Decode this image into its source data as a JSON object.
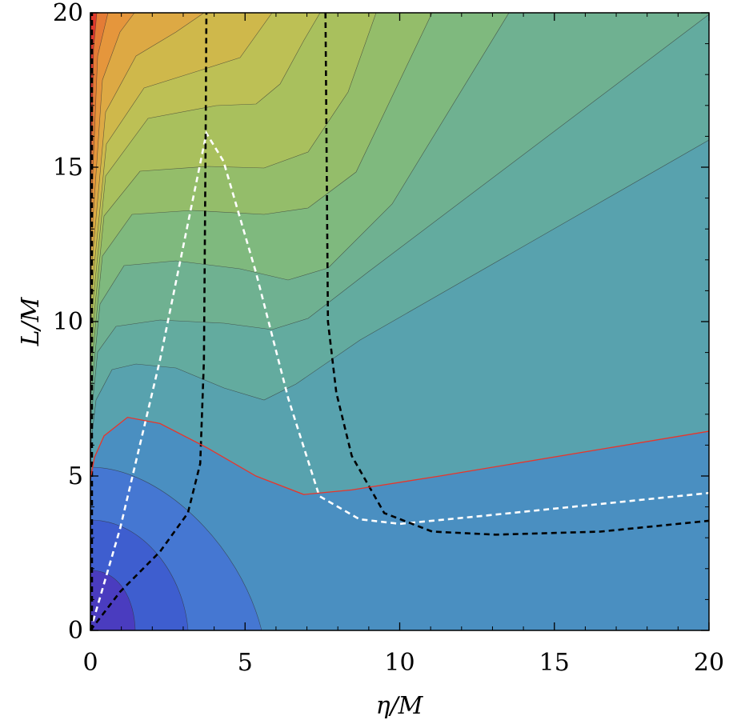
{
  "chart_data": {
    "type": "contour",
    "xlabel": "η/M",
    "ylabel": "L/M",
    "xlim": [
      0,
      20
    ],
    "ylim": [
      0,
      20
    ],
    "xticks": [
      0,
      5,
      10,
      15,
      20
    ],
    "yticks": [
      0,
      5,
      10,
      15,
      20
    ],
    "xminorticks": [
      1,
      2,
      3,
      4,
      6,
      7,
      8,
      9,
      11,
      12,
      13,
      14,
      16,
      17,
      18,
      19
    ],
    "yminorticks": [
      1,
      2,
      3,
      4,
      6,
      7,
      8,
      9,
      11,
      12,
      13,
      14,
      16,
      17,
      18,
      19
    ],
    "series": [
      {
        "color": "#ffffff",
        "linestyle": "dashed",
        "x": [
          0,
          0.96,
          2.25,
          3.3,
          3.75,
          4.3,
          5.35,
          6.4,
          7.4,
          8.7,
          10,
          12.6,
          20
        ],
        "values": [
          0,
          3.3,
          8.76,
          13.9,
          16.1,
          15.2,
          11.6,
          7.5,
          4.35,
          3.6,
          3.45,
          3.7,
          4.45
        ]
      },
      {
        "color": "#000000",
        "linestyle": "dashed",
        "x": [
          0,
          0.96,
          2.25,
          3.15,
          3.55,
          3.67,
          3.72,
          3.75
        ],
        "values": [
          0,
          1.25,
          2.55,
          3.8,
          5.4,
          8.75,
          15.2,
          20
        ]
      },
      {
        "color": "#000000",
        "linestyle": "dashed",
        "x": [
          0.05,
          0.05
        ],
        "values": [
          0,
          20
        ]
      },
      {
        "color": "#000000",
        "linestyle": "dashed",
        "x": [
          7.6,
          7.68,
          7.95,
          8.45,
          9.5,
          11.05,
          13.1,
          16.5,
          20
        ],
        "values": [
          20,
          10,
          7.7,
          5.65,
          3.8,
          3.2,
          3.1,
          3.2,
          3.55
        ]
      },
      {
        "color": "#e8352b",
        "linestyle": "solid",
        "x": [
          0,
          0.13,
          0.44,
          1.2,
          2.25,
          3.8,
          5.35,
          6.9,
          8.45,
          11.3,
          20
        ],
        "values": [
          4.9,
          5.6,
          6.3,
          6.9,
          6.7,
          5.9,
          5.0,
          4.4,
          4.55,
          5.0,
          6.45
        ]
      }
    ]
  }
}
